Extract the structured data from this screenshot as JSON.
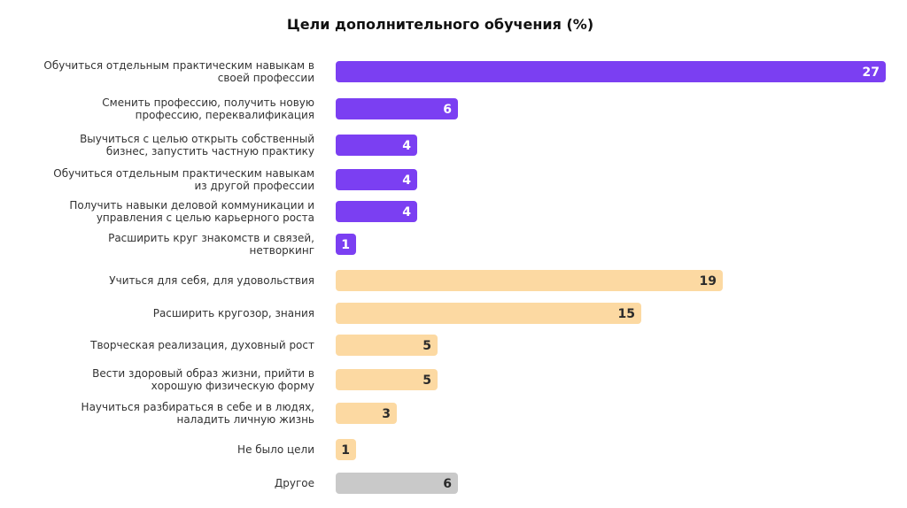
{
  "chart_data": {
    "type": "bar",
    "orientation": "horizontal",
    "title": "Цели дополнительного обучения (%)",
    "xlabel": "",
    "ylabel": "",
    "xlim": [
      0,
      27
    ],
    "grid": false,
    "legend": "none",
    "categories": [
      [
        "Обучиться отдельным практическим навыкам в",
        "своей профессии"
      ],
      [
        "Сменить профессию, получить новую",
        "профессию, переквалификация"
      ],
      [
        "Выучиться с целью открыть собственный",
        "бизнес, запустить частную практику"
      ],
      [
        "Обучиться отдельным практическим навыкам",
        "из другой профессии"
      ],
      [
        "Получить навыки деловой коммуникации и",
        "управления с целью карьерного роста"
      ],
      [
        "Расширить круг знакомств и связей,",
        "нетворкинг"
      ],
      [
        "Учиться для себя, для удовольствия"
      ],
      [
        "Расширить кругозор, знания"
      ],
      [
        "Творческая реализация, духовный рост"
      ],
      [
        "Вести здоровый образ жизни, прийти в",
        "хорошую физическую форму"
      ],
      [
        "Научиться разбираться в себе и в людях,",
        "наладить личную жизнь"
      ],
      [
        "Не было цели"
      ],
      [
        "Другое"
      ]
    ],
    "values": [
      27,
      6,
      4,
      4,
      4,
      1,
      19,
      15,
      5,
      5,
      3,
      1,
      6
    ],
    "bar_groups": [
      "career",
      "career",
      "career",
      "career",
      "career",
      "career",
      "personal",
      "personal",
      "personal",
      "personal",
      "personal",
      "personal",
      "other"
    ],
    "colors": {
      "career": "#7b3ff2",
      "personal": "#fcd9a2",
      "other": "#c9c9c9"
    },
    "value_label_colors": {
      "career": "#ffffff",
      "personal": "#2b2b2b",
      "other": "#2b2b2b"
    }
  }
}
